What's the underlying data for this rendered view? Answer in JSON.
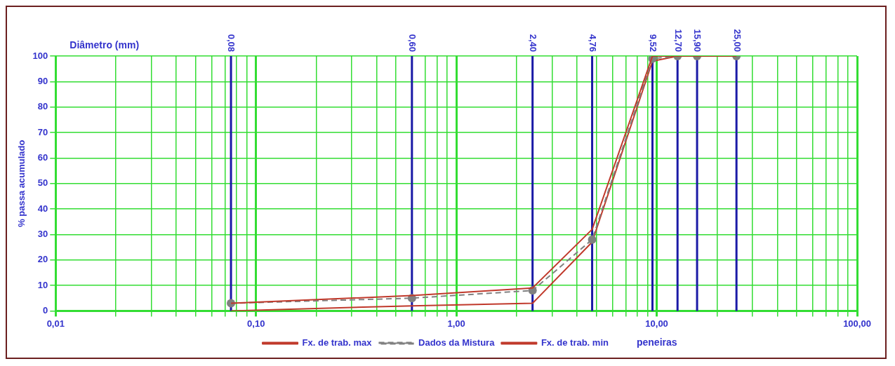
{
  "chart_data": {
    "type": "line",
    "xlabel": "Diâmetro (mm)",
    "ylabel": "% passa acumulado",
    "log": "x",
    "x": [
      0.075,
      0.6,
      2.4,
      4.76,
      9.52,
      12.7,
      15.9,
      25
    ],
    "series": [
      {
        "name": "Fx. de trab. max",
        "color": "#c0392b",
        "values": [
          3,
          6,
          9,
          32,
          100,
          100,
          100,
          100
        ],
        "marker": "none",
        "line_style": "solid"
      },
      {
        "name": "Dados da Mistura",
        "color": "#808080",
        "values": [
          3,
          5,
          8,
          28,
          99,
          100,
          100,
          100
        ],
        "marker": "circle",
        "line_style": "dashed"
      },
      {
        "name": "Fx. de trab. min",
        "color": "#c0392b",
        "values": [
          0,
          2,
          3,
          27,
          98,
          100,
          100,
          100
        ],
        "marker": "none",
        "line_style": "solid"
      }
    ],
    "xlim": [
      0.01,
      100
    ],
    "xticks": [
      {
        "value": 0.01,
        "label": "0,01"
      },
      {
        "value": 0.02,
        "label": null
      },
      {
        "value": 0.03,
        "label": null
      },
      {
        "value": 0.04,
        "label": null
      },
      {
        "value": 0.05,
        "label": null
      },
      {
        "value": 0.06,
        "label": null
      },
      {
        "value": 0.07,
        "label": null
      },
      {
        "value": 0.08,
        "label": null
      },
      {
        "value": 0.09,
        "label": null
      },
      {
        "value": 0.1,
        "label": "0,10"
      },
      {
        "value": 0.2,
        "label": null
      },
      {
        "value": 0.3,
        "label": null
      },
      {
        "value": 0.4,
        "label": null
      },
      {
        "value": 0.5,
        "label": null
      },
      {
        "value": 0.6,
        "label": null
      },
      {
        "value": 0.7,
        "label": null
      },
      {
        "value": 0.8,
        "label": null
      },
      {
        "value": 0.9,
        "label": null
      },
      {
        "value": 1,
        "label": "1,00"
      },
      {
        "value": 2,
        "label": null
      },
      {
        "value": 3,
        "label": null
      },
      {
        "value": 4,
        "label": null
      },
      {
        "value": 5,
        "label": null
      },
      {
        "value": 6,
        "label": null
      },
      {
        "value": 7,
        "label": null
      },
      {
        "value": 8,
        "label": null
      },
      {
        "value": 9,
        "label": null
      },
      {
        "value": 10,
        "label": "10,00"
      },
      {
        "value": 20,
        "label": null
      },
      {
        "value": 30,
        "label": null
      },
      {
        "value": 40,
        "label": null
      },
      {
        "value": 50,
        "label": null
      },
      {
        "value": 60,
        "label": null
      },
      {
        "value": 70,
        "label": null
      },
      {
        "value": 80,
        "label": null
      },
      {
        "value": 90,
        "label": null
      },
      {
        "value": 100,
        "label": "100,00"
      }
    ],
    "ylim": [
      0,
      100
    ],
    "yticks": [
      0,
      10,
      20,
      30,
      40,
      50,
      60,
      70,
      80,
      90,
      100
    ],
    "grid": true,
    "legend": "bottom",
    "ref_lines": [
      {
        "axis": "x",
        "value": 0.075,
        "label": "0,08",
        "color": "#1a1aa6"
      },
      {
        "axis": "x",
        "value": 0.6,
        "label": "0,60",
        "color": "#1a1aa6"
      },
      {
        "axis": "x",
        "value": 2.4,
        "label": "2,40",
        "color": "#1a1aa6"
      },
      {
        "axis": "x",
        "value": 4.76,
        "label": "4,76",
        "color": "#1a1aa6"
      },
      {
        "axis": "x",
        "value": 9.52,
        "label": "9,52",
        "color": "#1a1aa6"
      },
      {
        "axis": "x",
        "value": 12.7,
        "label": "12,70",
        "color": "#1a1aa6"
      },
      {
        "axis": "x",
        "value": 15.9,
        "label": "15,90",
        "color": "#1a1aa6"
      },
      {
        "axis": "x",
        "value": 25,
        "label": "25,00",
        "color": "#1a1aa6"
      }
    ],
    "annotations": [
      "peneiras"
    ]
  }
}
